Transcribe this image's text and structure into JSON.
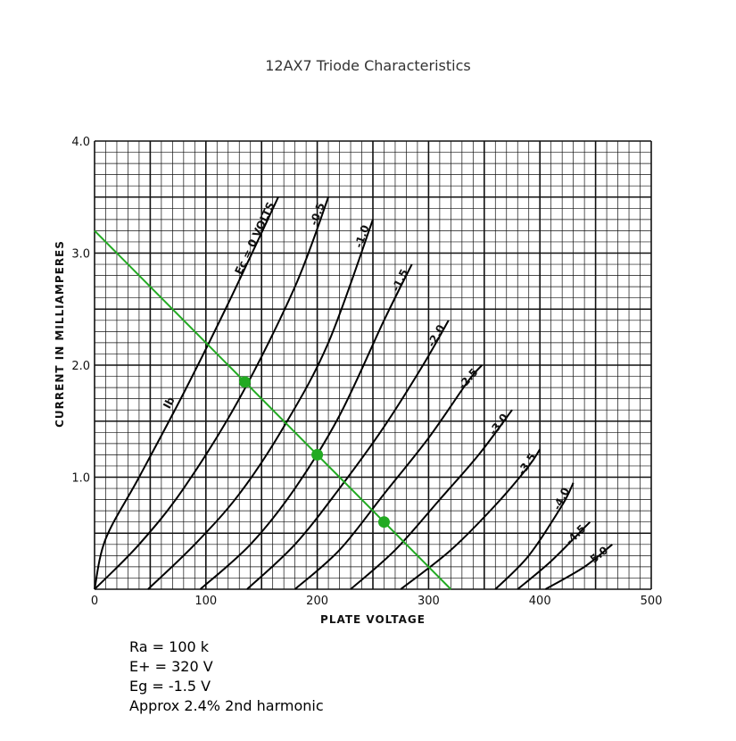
{
  "colors": {
    "accent": "#22aa22",
    "grid": "#111111",
    "curve": "#000000",
    "background": "#ffffff"
  },
  "annotations": [
    "Ra = 100 k",
    "E+ = 320 V",
    "Eg = -1.5 V",
    "Approx 2.4% 2nd harmonic"
  ],
  "chart_data": {
    "type": "line",
    "title": "12AX7 Triode Characteristics",
    "xlabel": "PLATE VOLTAGE",
    "ylabel": "CURRENT  IN  MILLIAMPERES",
    "xlim": [
      0,
      500
    ],
    "ylim": [
      0,
      4.0
    ],
    "x_ticks": [
      "0",
      "100",
      "200",
      "300",
      "400",
      "500"
    ],
    "y_ticks": [
      "1.0",
      "2.0",
      "3.0",
      "4.0"
    ],
    "grid": true,
    "axis_annotation": "Ib",
    "series": [
      {
        "name": "Ec = 0 VOLTS",
        "x": [
          0,
          10,
          40,
          80,
          120,
          165
        ],
        "y": [
          0,
          0.45,
          1.0,
          1.75,
          2.55,
          3.5
        ]
      },
      {
        "name": "-0.5",
        "x": [
          0,
          40,
          80,
          130,
          180,
          210
        ],
        "y": [
          0,
          0.4,
          0.9,
          1.7,
          2.7,
          3.5
        ]
      },
      {
        "name": "-1.0",
        "x": [
          48,
          90,
          130,
          170,
          210,
          250
        ],
        "y": [
          0,
          0.4,
          0.85,
          1.45,
          2.2,
          3.3
        ]
      },
      {
        "name": "-1.5",
        "x": [
          95,
          140,
          180,
          220,
          260,
          285
        ],
        "y": [
          0,
          0.4,
          0.9,
          1.55,
          2.4,
          2.9
        ]
      },
      {
        "name": "-2.0",
        "x": [
          137,
          180,
          220,
          260,
          295,
          318
        ],
        "y": [
          0,
          0.4,
          0.9,
          1.45,
          2.0,
          2.4
        ]
      },
      {
        "name": "-2.5",
        "x": [
          180,
          220,
          260,
          300,
          335,
          348
        ],
        "y": [
          0,
          0.35,
          0.85,
          1.35,
          1.85,
          2.0
        ]
      },
      {
        "name": "-3.0",
        "x": [
          230,
          270,
          310,
          345,
          375
        ],
        "y": [
          0,
          0.35,
          0.8,
          1.2,
          1.6
        ]
      },
      {
        "name": "-3.5",
        "x": [
          275,
          320,
          360,
          390,
          400
        ],
        "y": [
          0,
          0.35,
          0.75,
          1.1,
          1.25
        ]
      },
      {
        "name": "-4.0",
        "x": [
          360,
          390,
          420,
          430
        ],
        "y": [
          0,
          0.3,
          0.75,
          0.95
        ]
      },
      {
        "name": "-4.5",
        "x": [
          380,
          410,
          440,
          445
        ],
        "y": [
          0,
          0.25,
          0.55,
          0.6
        ]
      },
      {
        "name": "-5.0",
        "x": [
          405,
          440,
          465
        ],
        "y": [
          0,
          0.2,
          0.4
        ]
      }
    ],
    "load_line": {
      "x": [
        0,
        320
      ],
      "y": [
        3.2,
        0
      ]
    },
    "operating_points": [
      {
        "x": 135,
        "y": 1.85
      },
      {
        "x": 200,
        "y": 1.2
      },
      {
        "x": 260,
        "y": 0.6
      }
    ]
  }
}
